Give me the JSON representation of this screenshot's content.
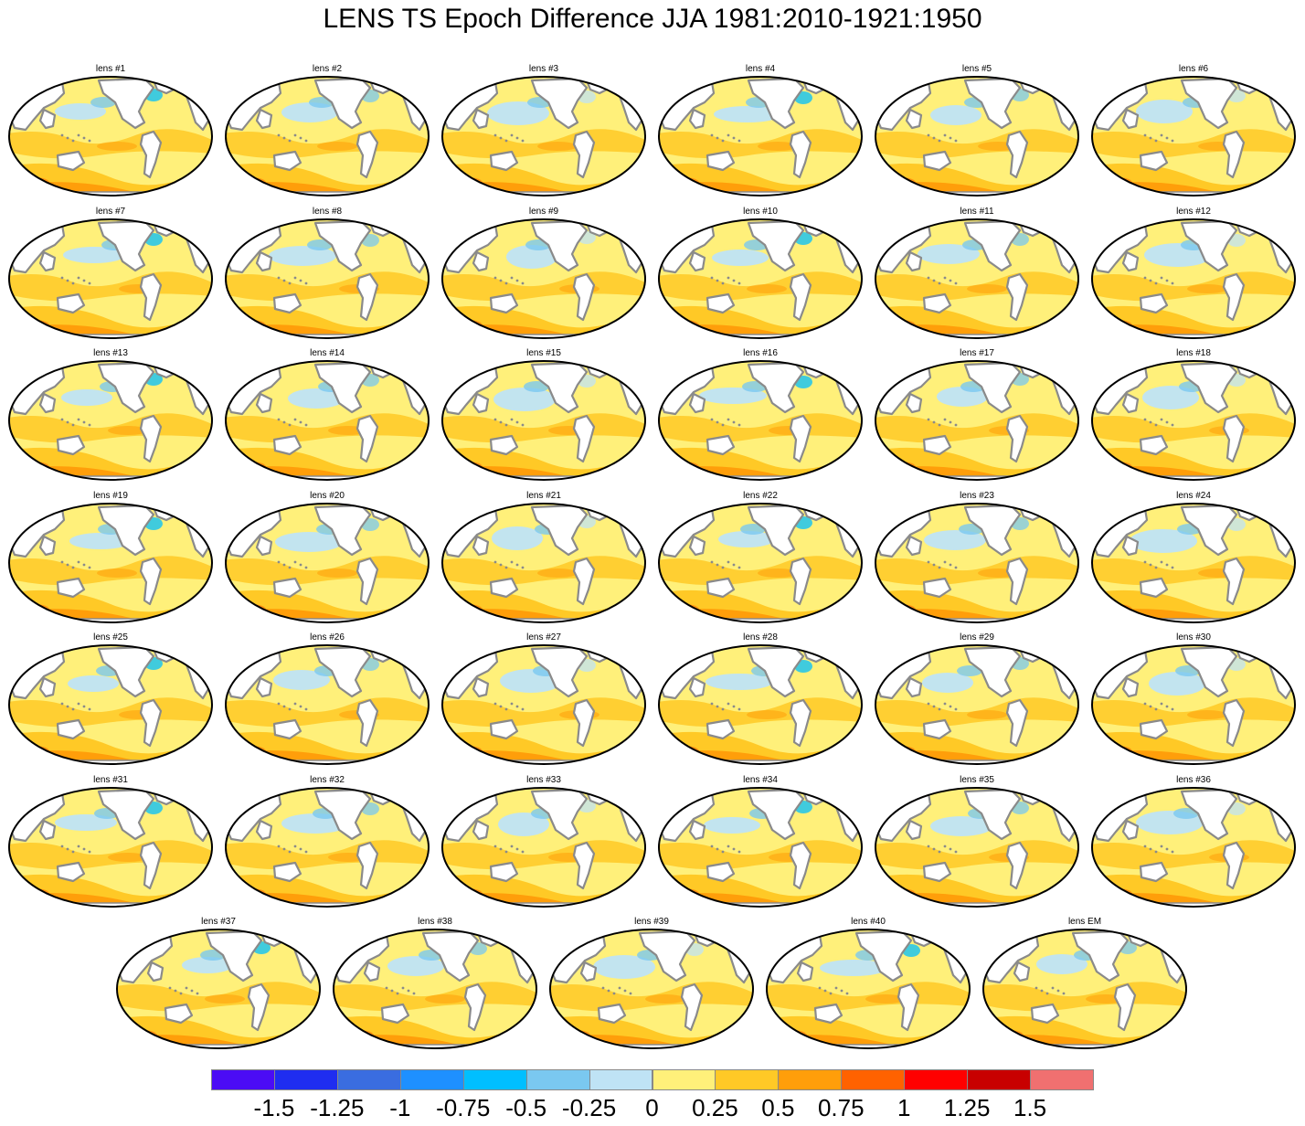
{
  "title": "LENS TS Epoch Difference JJA 1981:2010-1921:1950",
  "panels": [
    "lens #1",
    "lens #2",
    "lens #3",
    "lens #4",
    "lens #5",
    "lens #6",
    "lens #7",
    "lens #8",
    "lens #9",
    "lens #10",
    "lens #11",
    "lens #12",
    "lens #13",
    "lens #14",
    "lens #15",
    "lens #16",
    "lens #17",
    "lens #18",
    "lens #19",
    "lens #20",
    "lens #21",
    "lens #22",
    "lens #23",
    "lens #24",
    "lens #25",
    "lens #26",
    "lens #27",
    "lens #28",
    "lens #29",
    "lens #30",
    "lens #31",
    "lens #32",
    "lens #33",
    "lens #34",
    "lens #35",
    "lens #36",
    "lens #37",
    "lens #38",
    "lens #39",
    "lens #40",
    "lens EM"
  ],
  "colorbar": {
    "colors": [
      "#4b0cf5",
      "#1f2df0",
      "#3a6de0",
      "#1e90ff",
      "#00bfff",
      "#7ac8f0",
      "#bfe3f5",
      "#fff07a",
      "#ffc926",
      "#ff9e0a",
      "#ff6200",
      "#ff0000",
      "#c80000",
      "#f07070"
    ],
    "labels": [
      "-1.5",
      "-1.25",
      "-1",
      "-0.75",
      "-0.5",
      "-0.25",
      "0",
      "0.25",
      "0.5",
      "0.75",
      "1",
      "1.25",
      "1.5"
    ]
  },
  "map_colors": {
    "land": "#ffffff",
    "coast": "#8a8a8a",
    "outline": "#000000"
  }
}
